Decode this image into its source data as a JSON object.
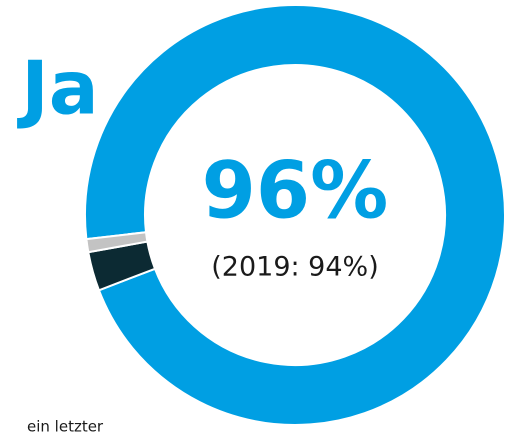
{
  "chart_data": {
    "type": "donut",
    "label": "Ja",
    "center_value": "96%",
    "note": "(2019: 94%)",
    "annotation": "ein letzter",
    "categories": [
      "Ja",
      null,
      null
    ],
    "values": [
      96,
      3,
      1
    ],
    "colors": [
      "#009fe3",
      "#0c2a33",
      "#c3c3c3"
    ]
  }
}
